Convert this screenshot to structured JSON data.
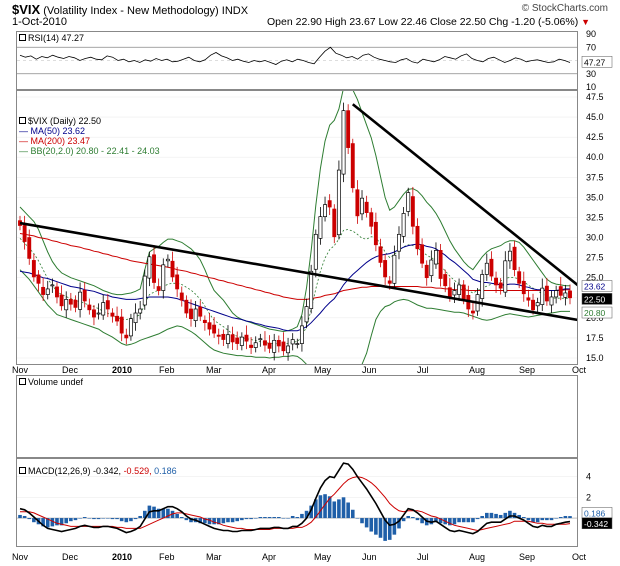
{
  "header": {
    "symbol": "$VIX",
    "name": "(Volatility Index - New Methodology)",
    "exchange": "INDX",
    "date": "1-Oct-2010",
    "copyright": "© StockCharts.com",
    "open_label": "Open",
    "open": "22.90",
    "high_label": "High",
    "high": "23.67",
    "low_label": "Low",
    "low": "22.46",
    "close_label": "Close",
    "close": "22.50",
    "chg_label": "Chg",
    "chg": "-1.20 (-5.06%)",
    "chg_arrow": "▼",
    "down_color": "#cc0000"
  },
  "legends": {
    "rsi": "RSI(14) 47.27",
    "price_main": "$VIX (Daily) 22.50",
    "ma50": "MA(50) 23.62",
    "ma200": "MA(200) 23.47",
    "bb": "BB(20,2.0) 20.80 - 22.41 - 24.03",
    "volume": "Volume undef",
    "macd_main": "MACD(12,26,9) -0.342,",
    "macd_sig": "-0.529,",
    "macd_hist": "0.186"
  },
  "badges": {
    "rsi": "47.27",
    "price_ma50": "23.62",
    "price_close": "22.50",
    "price_bb_low": "20.80",
    "macd_hist": "0.186",
    "macd_val": "-0.342"
  },
  "x_axis": {
    "labels": [
      "Nov",
      "Dec",
      "2010",
      "Feb",
      "Mar",
      "Apr",
      "May",
      "Jun",
      "Jul",
      "Aug",
      "Sep",
      "Oct"
    ],
    "bold": [
      "2010"
    ]
  },
  "chart_data": [
    {
      "type": "line",
      "name": "RSI(14)",
      "ylim": [
        10,
        90
      ],
      "yticks": [
        "90",
        "70",
        "50",
        "30",
        "10"
      ],
      "values": [
        58,
        55,
        57,
        52,
        56,
        54,
        58,
        55,
        53,
        56,
        54,
        50,
        53,
        55,
        52,
        51,
        57,
        55,
        50,
        52,
        48,
        50,
        47,
        51,
        49,
        53,
        50,
        52,
        48,
        49,
        52,
        55,
        50,
        48,
        51,
        58,
        62,
        57,
        54,
        50,
        52,
        49,
        47,
        50,
        48,
        50,
        47,
        44,
        49,
        51,
        48,
        52,
        50,
        47,
        45,
        55,
        64,
        70,
        61,
        58,
        54,
        56,
        52,
        58,
        60,
        55,
        52,
        50,
        48,
        47,
        51,
        53,
        48,
        46,
        52,
        50,
        48,
        51,
        56,
        54,
        52,
        57,
        60,
        53,
        50,
        48,
        53,
        55,
        51,
        47,
        50,
        54,
        52,
        48,
        50,
        51,
        49,
        47,
        48,
        52,
        50,
        47
      ],
      "colors": {
        "line": "#000000",
        "band": "#888888"
      }
    },
    {
      "type": "candlestick",
      "name": "$VIX (Daily)",
      "ylim": [
        15,
        47.5
      ],
      "yticks": [
        "47.5",
        "45.0",
        "42.5",
        "40.0",
        "37.5",
        "35.0",
        "32.5",
        "30.0",
        "27.5",
        "25.0",
        "22.5",
        "20.0",
        "17.5",
        "15.0"
      ],
      "close": [
        31.5,
        29.5,
        27.4,
        25.1,
        24.3,
        22.9,
        23.6,
        24.1,
        22.6,
        21.5,
        22.3,
        21.7,
        21.3,
        23.2,
        22.1,
        21.0,
        20.1,
        20.6,
        21.9,
        21.1,
        20.2,
        19.6,
        18.1,
        17.5,
        19.9,
        20.6,
        21.1,
        25.2,
        27.6,
        24.4,
        23.4,
        26.6,
        27.3,
        25.1,
        23.6,
        22.2,
        20.6,
        19.9,
        21.1,
        20.2,
        19.4,
        18.6,
        18.1,
        17.7,
        17.3,
        17.9,
        17.0,
        16.8,
        17.6,
        17.1,
        16.3,
        16.9,
        17.4,
        16.6,
        16.2,
        17.2,
        16.5,
        15.9,
        16.5,
        17.3,
        16.8,
        19.0,
        21.4,
        25.8,
        30.4,
        32.6,
        34.1,
        33.8,
        30.1,
        38.4,
        45.8,
        41.2,
        36.2,
        32.7,
        34.9,
        33.1,
        31.4,
        29.1,
        26.9,
        25.1,
        24.3,
        27.8,
        30.4,
        33.0,
        35.6,
        31.4,
        28.6,
        26.8,
        25.0,
        27.2,
        28.4,
        24.9,
        24.0,
        22.6,
        23.4,
        24.1,
        22.3,
        21.1,
        20.6,
        22.9,
        25.4,
        26.8,
        25.2,
        24.1,
        23.7,
        27.1,
        28.3,
        26.0,
        24.3,
        23.0,
        22.2,
        21.0,
        21.9,
        23.7,
        22.1,
        22.6,
        23.4,
        22.8,
        23.1,
        22.5
      ],
      "ma50": [
        25.8,
        25.7,
        25.6,
        25.4,
        25.2,
        25.0,
        24.9,
        24.7,
        24.5,
        24.3,
        24.1,
        23.9,
        23.8,
        23.7,
        23.5,
        23.4,
        23.3,
        23.1,
        22.9,
        22.8,
        22.6,
        22.5,
        22.4,
        22.3,
        22.3,
        22.3,
        22.4,
        22.5,
        22.6,
        22.6,
        22.6,
        22.6,
        22.6,
        22.5,
        22.4,
        22.2,
        22.0,
        21.8,
        21.6,
        21.4,
        21.2,
        21.0,
        20.8,
        20.6,
        20.4,
        20.2,
        20.0,
        19.9,
        19.8,
        19.6,
        19.5,
        19.3,
        19.2,
        19.0,
        18.9,
        18.8,
        18.7,
        18.5,
        18.4,
        18.4,
        18.4,
        18.6,
        18.9,
        19.4,
        20.0,
        20.6,
        21.3,
        21.9,
        22.4,
        23.2,
        24.1,
        24.8,
        25.4,
        25.9,
        26.4,
        26.9,
        27.3,
        27.6,
        27.8,
        27.9,
        28.0,
        28.2,
        28.5,
        28.8,
        29.0,
        29.1,
        29.2,
        29.1,
        28.9,
        28.8,
        28.6,
        28.2,
        27.8,
        27.3,
        26.9,
        26.4,
        25.9,
        25.4,
        24.8,
        24.6,
        24.4,
        24.4,
        24.3,
        24.2,
        24.1,
        24.1,
        24.2,
        24.2,
        24.1,
        23.9,
        23.8,
        23.6,
        23.5,
        23.5,
        23.4,
        23.4,
        23.4,
        23.5,
        23.6,
        23.6
      ],
      "ma200": [
        30.5,
        30.4,
        30.3,
        30.2,
        30.0,
        29.9,
        29.8,
        29.6,
        29.5,
        29.3,
        29.2,
        29.0,
        28.9,
        28.8,
        28.6,
        28.5,
        28.3,
        28.2,
        28.0,
        27.9,
        27.7,
        27.6,
        27.4,
        27.3,
        27.1,
        27.0,
        26.9,
        26.8,
        26.7,
        26.6,
        26.5,
        26.4,
        26.3,
        26.2,
        26.0,
        25.9,
        25.8,
        25.6,
        25.5,
        25.3,
        25.2,
        25.0,
        24.9,
        24.7,
        24.6,
        24.4,
        24.3,
        24.1,
        24.0,
        23.8,
        23.7,
        23.5,
        23.4,
        23.2,
        23.1,
        22.9,
        22.8,
        22.6,
        22.5,
        22.4,
        22.3,
        22.3,
        22.3,
        22.4,
        22.5,
        22.6,
        22.8,
        22.9,
        23.0,
        23.2,
        23.4,
        23.5,
        23.6,
        23.7,
        23.8,
        23.8,
        23.9,
        23.9,
        23.9,
        23.9,
        23.9,
        23.9,
        23.9,
        23.9,
        23.9,
        23.9,
        23.9,
        23.8,
        23.8,
        23.8,
        23.7,
        23.7,
        23.6,
        23.6,
        23.5,
        23.5,
        23.5,
        23.4,
        23.4,
        23.4,
        23.4,
        23.4,
        23.4,
        23.4,
        23.4,
        23.4,
        23.4,
        23.4,
        23.4,
        23.4,
        23.4,
        23.4,
        23.4,
        23.4,
        23.4,
        23.4,
        23.4,
        23.4,
        23.5,
        23.5
      ],
      "bb_upper": [
        33.8,
        33.2,
        32.6,
        32.0,
        31.0,
        29.6,
        28.2,
        27.0,
        26.2,
        25.6,
        25.3,
        25.0,
        24.8,
        24.6,
        24.4,
        24.2,
        24.0,
        23.7,
        23.4,
        23.2,
        23.0,
        22.9,
        22.9,
        23.0,
        23.1,
        23.3,
        23.6,
        26.0,
        28.2,
        28.6,
        28.9,
        29.4,
        29.8,
        29.8,
        29.6,
        29.4,
        29.0,
        28.6,
        28.0,
        27.2,
        26.0,
        24.6,
        23.4,
        22.8,
        22.2,
        21.4,
        20.6,
        20.1,
        19.8,
        19.6,
        19.4,
        19.2,
        19.0,
        18.8,
        18.6,
        18.5,
        18.4,
        18.3,
        18.4,
        18.6,
        18.9,
        20.4,
        23.8,
        28.4,
        34.0,
        38.6,
        42.0,
        44.0,
        44.6,
        46.0,
        48.6,
        49.0,
        48.4,
        47.2,
        45.6,
        44.0,
        42.4,
        40.2,
        37.6,
        35.0,
        33.4,
        33.8,
        34.6,
        35.4,
        36.0,
        36.1,
        35.8,
        35.2,
        34.4,
        33.8,
        33.0,
        32.0,
        30.8,
        29.6,
        28.6,
        27.8,
        27.0,
        26.4,
        26.0,
        26.8,
        27.6,
        28.2,
        28.6,
        28.8,
        29.0,
        29.4,
        29.6,
        29.6,
        29.4,
        28.8,
        28.0,
        27.2,
        26.4,
        25.6,
        24.8,
        24.4,
        24.2,
        24.1,
        24.0,
        24.0
      ],
      "bb_lower": [
        26.0,
        25.4,
        24.8,
        24.0,
        23.2,
        22.4,
        21.6,
        21.0,
        20.4,
        20.2,
        20.0,
        19.8,
        19.6,
        19.4,
        19.2,
        19.0,
        18.8,
        18.6,
        18.2,
        17.9,
        17.6,
        17.2,
        16.8,
        16.6,
        16.7,
        16.9,
        17.2,
        17.4,
        17.6,
        17.8,
        18.0,
        18.3,
        18.6,
        18.8,
        19.0,
        18.9,
        18.6,
        18.3,
        17.9,
        17.4,
        16.9,
        16.4,
        16.0,
        15.8,
        15.6,
        15.5,
        15.4,
        15.3,
        15.3,
        15.2,
        15.2,
        15.1,
        15.1,
        15.1,
        15.0,
        15.1,
        15.1,
        15.2,
        15.2,
        15.3,
        15.2,
        14.8,
        14.2,
        13.6,
        13.2,
        13.0,
        12.9,
        13.0,
        13.4,
        13.6,
        13.2,
        13.0,
        13.2,
        13.6,
        14.2,
        15.6,
        17.8,
        19.8,
        20.8,
        21.4,
        21.6,
        22.0,
        22.2,
        22.3,
        22.2,
        21.9,
        21.6,
        21.4,
        21.2,
        21.2,
        21.1,
        21.0,
        20.9,
        20.8,
        20.7,
        20.7,
        20.6,
        20.4,
        20.2,
        20.0,
        19.8,
        19.7,
        19.8,
        20.0,
        20.2,
        20.4,
        20.5,
        20.4,
        20.3,
        20.2,
        20.1,
        20.2,
        20.3,
        20.4,
        20.5,
        20.6,
        20.7,
        20.8,
        20.8,
        20.8
      ],
      "trendlines": [
        {
          "from": [
            0,
            31.8
          ],
          "to": [
            126,
            19.2
          ]
        },
        {
          "from": [
            72,
            46.6
          ],
          "to": [
            126,
            21.6
          ]
        }
      ],
      "colors": {
        "up": "#000000",
        "down": "#cc0000",
        "ma50": "#00008b",
        "ma200": "#cc0000",
        "bb": "#2e7d32",
        "trend": "#000000"
      }
    },
    {
      "type": "bar",
      "name": "Volume",
      "values": []
    },
    {
      "type": "line",
      "name": "MACD(12,26,9)",
      "ylim": [
        -2.5,
        5.5
      ],
      "yticks": [
        "4",
        "2",
        "0"
      ],
      "macd": [
        0.9,
        0.8,
        0.5,
        0.1,
        -0.3,
        -0.7,
        -1.0,
        -1.1,
        -1.2,
        -1.3,
        -1.2,
        -1.1,
        -1.0,
        -0.8,
        -0.7,
        -0.8,
        -0.9,
        -0.9,
        -0.8,
        -0.8,
        -0.9,
        -1.0,
        -1.2,
        -1.4,
        -1.3,
        -1.1,
        -0.8,
        -0.1,
        0.6,
        0.7,
        0.7,
        0.9,
        1.1,
        1.1,
        0.9,
        0.6,
        0.2,
        -0.1,
        -0.2,
        -0.4,
        -0.6,
        -0.8,
        -1.0,
        -1.1,
        -1.2,
        -1.2,
        -1.3,
        -1.3,
        -1.2,
        -1.2,
        -1.2,
        -1.1,
        -1.0,
        -1.0,
        -1.0,
        -0.9,
        -0.9,
        -1.0,
        -1.0,
        -0.8,
        -0.8,
        -0.5,
        0.0,
        0.8,
        1.9,
        2.9,
        3.6,
        4.0,
        3.9,
        4.6,
        5.3,
        5.2,
        4.7,
        4.0,
        3.4,
        2.8,
        2.1,
        1.4,
        0.6,
        -0.2,
        -0.7,
        -0.6,
        -0.3,
        0.3,
        0.9,
        0.8,
        0.5,
        0.1,
        -0.3,
        -0.4,
        -0.3,
        -0.6,
        -0.9,
        -1.2,
        -1.3,
        -1.2,
        -1.3,
        -1.4,
        -1.5,
        -1.3,
        -0.9,
        -0.5,
        -0.4,
        -0.4,
        -0.4,
        -0.1,
        0.2,
        0.2,
        0.0,
        -0.2,
        -0.5,
        -0.8,
        -0.9,
        -0.7,
        -0.8,
        -0.8,
        -0.6,
        -0.5,
        -0.4,
        -0.34
      ],
      "signal": [
        0.6,
        0.6,
        0.6,
        0.5,
        0.3,
        0.1,
        -0.1,
        -0.3,
        -0.5,
        -0.6,
        -0.7,
        -0.8,
        -0.8,
        -0.8,
        -0.8,
        -0.8,
        -0.8,
        -0.8,
        -0.8,
        -0.8,
        -0.8,
        -0.9,
        -0.9,
        -1.0,
        -1.0,
        -1.0,
        -1.0,
        -0.8,
        -0.6,
        -0.4,
        -0.2,
        0.0,
        0.2,
        0.4,
        0.5,
        0.5,
        0.4,
        0.3,
        0.2,
        0.1,
        -0.1,
        -0.2,
        -0.4,
        -0.5,
        -0.7,
        -0.8,
        -0.9,
        -1.0,
        -1.0,
        -1.1,
        -1.1,
        -1.1,
        -1.1,
        -1.1,
        -1.1,
        -1.0,
        -1.0,
        -1.0,
        -1.0,
        -1.0,
        -0.9,
        -0.9,
        -0.7,
        -0.4,
        0.1,
        0.7,
        1.3,
        1.9,
        2.3,
        2.8,
        3.3,
        3.7,
        3.9,
        4.0,
        3.9,
        3.7,
        3.4,
        3.0,
        2.5,
        2.0,
        1.4,
        1.0,
        0.7,
        0.6,
        0.7,
        0.7,
        0.7,
        0.6,
        0.4,
        0.2,
        0.1,
        -0.1,
        -0.3,
        -0.5,
        -0.7,
        -0.8,
        -0.9,
        -1.0,
        -1.1,
        -1.2,
        -1.1,
        -1.0,
        -0.9,
        -0.8,
        -0.7,
        -0.6,
        -0.5,
        -0.3,
        -0.3,
        -0.3,
        -0.3,
        -0.4,
        -0.5,
        -0.5,
        -0.6,
        -0.6,
        -0.6,
        -0.6,
        -0.6,
        -0.53
      ],
      "colors": {
        "macd": "#000000",
        "signal": "#cc0000",
        "hist": "#1f5fa8"
      }
    }
  ]
}
